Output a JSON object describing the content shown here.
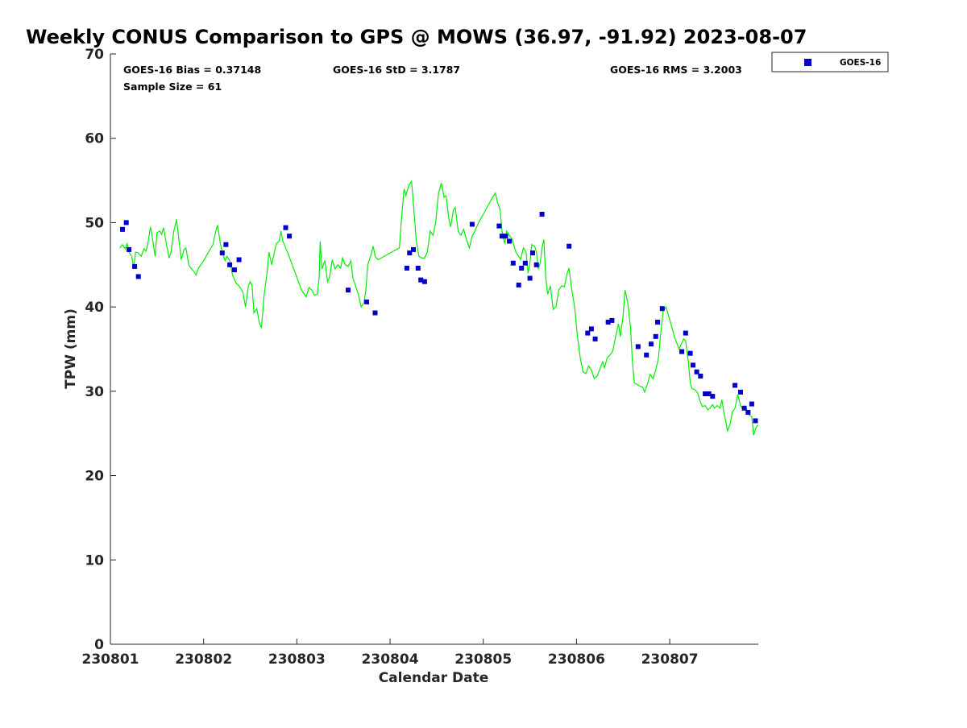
{
  "chart_data": {
    "type": "scatter",
    "title": "Weekly CONUS Comparison to GPS @ MOWS (36.97, -91.92) 2023-08-07",
    "xlabel": "Calendar Date",
    "ylabel": "TPW (mm)",
    "xlim": [
      0,
      6.95
    ],
    "ylim": [
      0,
      70
    ],
    "x_unit": "days from 230801",
    "x_ticks": [
      {
        "value": 0,
        "label": "230801"
      },
      {
        "value": 1,
        "label": "230802"
      },
      {
        "value": 2,
        "label": "230803"
      },
      {
        "value": 3,
        "label": "230804"
      },
      {
        "value": 4,
        "label": "230805"
      },
      {
        "value": 5,
        "label": "230806"
      },
      {
        "value": 6,
        "label": "230807"
      }
    ],
    "y_ticks": [
      {
        "value": 0,
        "label": "0"
      },
      {
        "value": 10,
        "label": "10"
      },
      {
        "value": 20,
        "label": "20"
      },
      {
        "value": 30,
        "label": "30"
      },
      {
        "value": 40,
        "label": "40"
      },
      {
        "value": 50,
        "label": "50"
      },
      {
        "value": 60,
        "label": "60"
      },
      {
        "value": 70,
        "label": "70"
      }
    ],
    "stats": {
      "bias": "GOES-16 Bias = 0.37148",
      "std": "GOES-16 StD = 3.1787",
      "rms": "GOES-16 RMS = 3.2003",
      "sample": "Sample Size = 61"
    },
    "legend": {
      "position": "outside-top-right",
      "entries": [
        {
          "name": "GOES-16",
          "color": "#0000cc",
          "marker": "square"
        }
      ]
    },
    "grid": false,
    "series": [
      {
        "name": "GOES-16",
        "type": "scatter",
        "color": "#0000cc",
        "points": [
          [
            0.13,
            49.2
          ],
          [
            0.17,
            50.0
          ],
          [
            0.2,
            46.8
          ],
          [
            0.26,
            44.8
          ],
          [
            0.3,
            43.6
          ],
          [
            1.2,
            46.4
          ],
          [
            1.24,
            47.4
          ],
          [
            1.28,
            45.0
          ],
          [
            1.33,
            44.4
          ],
          [
            1.38,
            45.6
          ],
          [
            1.88,
            49.4
          ],
          [
            1.92,
            48.4
          ],
          [
            2.55,
            42.0
          ],
          [
            2.75,
            40.6
          ],
          [
            2.84,
            39.3
          ],
          [
            3.18,
            44.6
          ],
          [
            3.21,
            46.4
          ],
          [
            3.25,
            46.8
          ],
          [
            3.3,
            44.6
          ],
          [
            3.33,
            43.2
          ],
          [
            3.37,
            43.0
          ],
          [
            3.88,
            49.8
          ],
          [
            4.17,
            49.6
          ],
          [
            4.2,
            48.4
          ],
          [
            4.24,
            48.4
          ],
          [
            4.28,
            47.8
          ],
          [
            4.32,
            45.2
          ],
          [
            4.38,
            42.6
          ],
          [
            4.41,
            44.6
          ],
          [
            4.45,
            45.2
          ],
          [
            4.5,
            43.4
          ],
          [
            4.53,
            46.4
          ],
          [
            4.57,
            45.0
          ],
          [
            4.63,
            51.0
          ],
          [
            4.92,
            47.2
          ],
          [
            5.12,
            36.9
          ],
          [
            5.16,
            37.4
          ],
          [
            5.2,
            36.2
          ],
          [
            5.34,
            38.2
          ],
          [
            5.38,
            38.4
          ],
          [
            5.66,
            35.3
          ],
          [
            5.75,
            34.3
          ],
          [
            5.8,
            35.6
          ],
          [
            5.85,
            36.5
          ],
          [
            5.87,
            38.2
          ],
          [
            5.92,
            39.8
          ],
          [
            6.13,
            34.7
          ],
          [
            6.17,
            36.9
          ],
          [
            6.22,
            34.5
          ],
          [
            6.25,
            33.1
          ],
          [
            6.29,
            32.3
          ],
          [
            6.33,
            31.8
          ],
          [
            6.38,
            29.7
          ],
          [
            6.42,
            29.7
          ],
          [
            6.46,
            29.4
          ],
          [
            6.7,
            30.7
          ],
          [
            6.76,
            29.9
          ],
          [
            6.8,
            28.0
          ],
          [
            6.84,
            27.5
          ],
          [
            6.88,
            28.5
          ],
          [
            6.92,
            26.5
          ]
        ]
      },
      {
        "name": "",
        "type": "line",
        "color": "#00ee00",
        "points": [
          [
            0.1,
            47.0
          ],
          [
            0.13,
            47.4
          ],
          [
            0.16,
            46.9
          ],
          [
            0.18,
            47.5
          ],
          [
            0.2,
            46.5
          ],
          [
            0.23,
            46.0
          ],
          [
            0.25,
            44.6
          ],
          [
            0.27,
            46.5
          ],
          [
            0.3,
            46.4
          ],
          [
            0.33,
            46.0
          ],
          [
            0.36,
            46.9
          ],
          [
            0.38,
            46.6
          ],
          [
            0.4,
            47.4
          ],
          [
            0.43,
            49.5
          ],
          [
            0.45,
            48.2
          ],
          [
            0.48,
            46.0
          ],
          [
            0.5,
            48.8
          ],
          [
            0.53,
            49.0
          ],
          [
            0.55,
            48.6
          ],
          [
            0.57,
            49.4
          ],
          [
            0.6,
            47.5
          ],
          [
            0.63,
            45.8
          ],
          [
            0.65,
            46.5
          ],
          [
            0.68,
            49.0
          ],
          [
            0.71,
            50.4
          ],
          [
            0.74,
            47.5
          ],
          [
            0.76,
            45.6
          ],
          [
            0.79,
            46.8
          ],
          [
            0.81,
            47.0
          ],
          [
            0.84,
            45.0
          ],
          [
            0.87,
            44.5
          ],
          [
            0.89,
            44.3
          ],
          [
            0.92,
            43.8
          ],
          [
            0.94,
            44.5
          ],
          [
            1.0,
            45.5
          ],
          [
            1.1,
            47.4
          ],
          [
            1.13,
            49.0
          ],
          [
            1.15,
            49.7
          ],
          [
            1.18,
            47.5
          ],
          [
            1.2,
            46.5
          ],
          [
            1.23,
            45.5
          ],
          [
            1.25,
            46.0
          ],
          [
            1.28,
            45.5
          ],
          [
            1.31,
            43.8
          ],
          [
            1.35,
            42.8
          ],
          [
            1.38,
            42.5
          ],
          [
            1.42,
            41.8
          ],
          [
            1.45,
            40.0
          ],
          [
            1.48,
            42.5
          ],
          [
            1.5,
            43.0
          ],
          [
            1.52,
            42.5
          ],
          [
            1.54,
            39.3
          ],
          [
            1.57,
            39.8
          ],
          [
            1.6,
            38.0
          ],
          [
            1.62,
            37.6
          ],
          [
            1.65,
            41.5
          ],
          [
            1.68,
            44.0
          ],
          [
            1.7,
            46.5
          ],
          [
            1.73,
            45.0
          ],
          [
            1.75,
            46.0
          ],
          [
            1.78,
            47.5
          ],
          [
            1.81,
            47.8
          ],
          [
            1.83,
            49.0
          ],
          [
            1.85,
            47.8
          ],
          [
            1.88,
            47.0
          ],
          [
            1.91,
            46.2
          ],
          [
            1.95,
            45.0
          ],
          [
            2.0,
            43.5
          ],
          [
            2.05,
            42.0
          ],
          [
            2.1,
            41.2
          ],
          [
            2.13,
            42.3
          ],
          [
            2.16,
            42.0
          ],
          [
            2.19,
            41.4
          ],
          [
            2.22,
            41.5
          ],
          [
            2.24,
            43.6
          ],
          [
            2.25,
            47.8
          ],
          [
            2.27,
            44.5
          ],
          [
            2.3,
            45.5
          ],
          [
            2.33,
            43.0
          ],
          [
            2.35,
            43.5
          ],
          [
            2.38,
            45.6
          ],
          [
            2.41,
            44.5
          ],
          [
            2.44,
            45.0
          ],
          [
            2.47,
            44.6
          ],
          [
            2.49,
            45.8
          ],
          [
            2.52,
            45.0
          ],
          [
            2.55,
            44.8
          ],
          [
            2.58,
            45.5
          ],
          [
            2.6,
            43.5
          ],
          [
            2.63,
            42.5
          ],
          [
            2.66,
            41.5
          ],
          [
            2.69,
            40.0
          ],
          [
            2.72,
            40.5
          ],
          [
            2.74,
            42.0
          ],
          [
            2.76,
            45.0
          ],
          [
            2.79,
            46.0
          ],
          [
            2.82,
            47.2
          ],
          [
            2.84,
            46.0
          ],
          [
            2.87,
            45.6
          ],
          [
            3.0,
            46.4
          ],
          [
            3.1,
            47.0
          ],
          [
            3.12,
            50.0
          ],
          [
            3.15,
            54.0
          ],
          [
            3.17,
            53.2
          ],
          [
            3.2,
            54.4
          ],
          [
            3.23,
            54.9
          ],
          [
            3.26,
            51.0
          ],
          [
            3.28,
            48.0
          ],
          [
            3.31,
            46.0
          ],
          [
            3.34,
            45.8
          ],
          [
            3.37,
            45.8
          ],
          [
            3.4,
            46.5
          ],
          [
            3.43,
            49.0
          ],
          [
            3.46,
            48.5
          ],
          [
            3.49,
            50.0
          ],
          [
            3.52,
            53.5
          ],
          [
            3.55,
            54.7
          ],
          [
            3.58,
            53.0
          ],
          [
            3.6,
            53.2
          ],
          [
            3.63,
            50.5
          ],
          [
            3.65,
            49.5
          ],
          [
            3.68,
            51.5
          ],
          [
            3.7,
            51.8
          ],
          [
            3.73,
            49.0
          ],
          [
            3.76,
            48.5
          ],
          [
            3.79,
            49.2
          ],
          [
            3.82,
            48.0
          ],
          [
            3.85,
            47.0
          ],
          [
            3.88,
            48.4
          ],
          [
            3.91,
            49.0
          ],
          [
            3.95,
            50.0
          ],
          [
            4.0,
            51.0
          ],
          [
            4.05,
            52.0
          ],
          [
            4.1,
            53.0
          ],
          [
            4.13,
            53.5
          ],
          [
            4.15,
            52.5
          ],
          [
            4.18,
            51.5
          ],
          [
            4.2,
            49.0
          ],
          [
            4.23,
            47.5
          ],
          [
            4.25,
            49.0
          ],
          [
            4.28,
            48.5
          ],
          [
            4.31,
            48.0
          ],
          [
            4.35,
            46.5
          ],
          [
            4.38,
            46.0
          ],
          [
            4.4,
            45.6
          ],
          [
            4.43,
            47.0
          ],
          [
            4.46,
            46.5
          ],
          [
            4.48,
            44.0
          ],
          [
            4.5,
            45.2
          ],
          [
            4.52,
            47.4
          ],
          [
            4.55,
            47.2
          ],
          [
            4.57,
            46.5
          ],
          [
            4.59,
            44.5
          ],
          [
            4.61,
            45.2
          ],
          [
            4.63,
            47.0
          ],
          [
            4.65,
            48.0
          ],
          [
            4.67,
            43.5
          ],
          [
            4.69,
            41.5
          ],
          [
            4.72,
            42.5
          ],
          [
            4.75,
            39.7
          ],
          [
            4.78,
            40.0
          ],
          [
            4.81,
            42.0
          ],
          [
            4.84,
            42.5
          ],
          [
            4.87,
            42.4
          ],
          [
            4.9,
            44.0
          ],
          [
            4.92,
            44.6
          ],
          [
            4.95,
            42.0
          ],
          [
            4.98,
            40.0
          ],
          [
            5.01,
            36.5
          ],
          [
            5.04,
            34.0
          ],
          [
            5.07,
            32.3
          ],
          [
            5.1,
            32.1
          ],
          [
            5.13,
            33.0
          ],
          [
            5.16,
            32.5
          ],
          [
            5.19,
            31.5
          ],
          [
            5.22,
            31.8
          ],
          [
            5.25,
            32.6
          ],
          [
            5.28,
            33.5
          ],
          [
            5.3,
            32.8
          ],
          [
            5.33,
            34.0
          ],
          [
            5.36,
            34.3
          ],
          [
            5.39,
            34.8
          ],
          [
            5.42,
            36.5
          ],
          [
            5.45,
            38.0
          ],
          [
            5.47,
            36.5
          ],
          [
            5.5,
            39.0
          ],
          [
            5.52,
            42.0
          ],
          [
            5.55,
            40.5
          ],
          [
            5.58,
            37.5
          ],
          [
            5.6,
            33.5
          ],
          [
            5.62,
            31.0
          ],
          [
            5.65,
            30.8
          ],
          [
            5.68,
            30.6
          ],
          [
            5.71,
            30.5
          ],
          [
            5.73,
            29.9
          ],
          [
            5.76,
            30.8
          ],
          [
            5.79,
            32.0
          ],
          [
            5.82,
            31.5
          ],
          [
            5.85,
            32.5
          ],
          [
            5.88,
            34.0
          ],
          [
            5.9,
            36.5
          ],
          [
            5.93,
            39.5
          ],
          [
            5.96,
            40.0
          ],
          [
            6.0,
            38.5
          ],
          [
            6.05,
            36.5
          ],
          [
            6.1,
            35.0
          ],
          [
            6.12,
            35.5
          ],
          [
            6.15,
            36.2
          ],
          [
            6.17,
            36.0
          ],
          [
            6.2,
            33.5
          ],
          [
            6.22,
            31.0
          ],
          [
            6.24,
            30.3
          ],
          [
            6.27,
            30.2
          ],
          [
            6.3,
            29.8
          ],
          [
            6.32,
            29.0
          ],
          [
            6.35,
            28.2
          ],
          [
            6.38,
            28.3
          ],
          [
            6.41,
            27.8
          ],
          [
            6.43,
            28.0
          ],
          [
            6.46,
            28.4
          ],
          [
            6.48,
            28.0
          ],
          [
            6.51,
            28.3
          ],
          [
            6.54,
            28.0
          ],
          [
            6.56,
            29.0
          ],
          [
            6.58,
            27.5
          ],
          [
            6.6,
            26.5
          ],
          [
            6.62,
            25.3
          ],
          [
            6.65,
            26.2
          ],
          [
            6.67,
            27.5
          ],
          [
            6.7,
            28.0
          ],
          [
            6.73,
            29.6
          ],
          [
            6.76,
            28.3
          ],
          [
            6.79,
            27.8
          ],
          [
            6.82,
            28.0
          ],
          [
            6.85,
            27.2
          ],
          [
            6.88,
            27.0
          ],
          [
            6.9,
            24.8
          ],
          [
            6.93,
            25.8
          ],
          [
            6.95,
            26.0
          ]
        ]
      }
    ]
  }
}
